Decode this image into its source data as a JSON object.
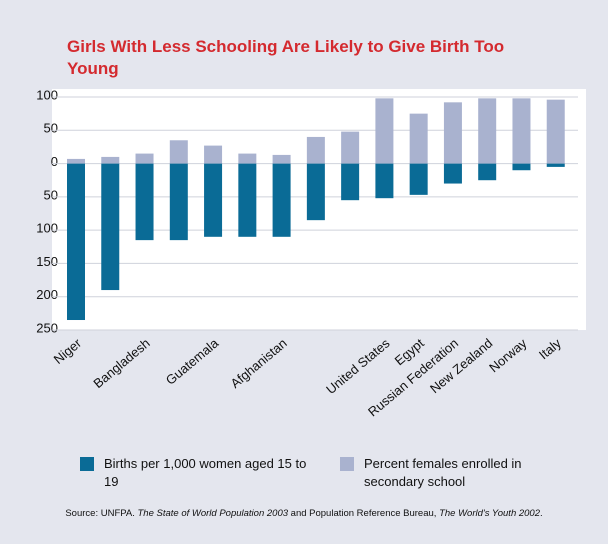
{
  "chart_data": {
    "type": "bar",
    "title": "Girls With Less Schooling Are Likely to Give Birth Too Young",
    "categories": [
      "Niger",
      null,
      "Bangladesh",
      null,
      "Guatemala",
      null,
      "Afghanistan",
      null,
      null,
      "United States",
      "Egypt",
      "Russian Federation",
      "New Zealand",
      "Norway",
      "Italy"
    ],
    "series": [
      {
        "name": "Births per 1,000 women aged 15 to 19",
        "color": "#0a6b96",
        "values": [
          -235,
          -190,
          -115,
          -115,
          -110,
          -110,
          -110,
          -85,
          -55,
          -52,
          -47,
          -30,
          -25,
          -10,
          -5
        ]
      },
      {
        "name": "Percent females enrolled in secondary school",
        "color": "#a9b2cf",
        "values": [
          7,
          10,
          15,
          35,
          27,
          15,
          13,
          40,
          48,
          98,
          75,
          92,
          98,
          98,
          96
        ]
      }
    ],
    "ylim": [
      -250,
      100
    ],
    "yticks": [
      100,
      50,
      0,
      {
        "value": -50,
        "label": "50"
      },
      {
        "value": -100,
        "label": "100"
      },
      {
        "value": -150,
        "label": "150"
      },
      {
        "value": -200,
        "label": "200"
      },
      {
        "value": -250,
        "label": "250"
      }
    ],
    "grid": true,
    "source_parts": [
      "Source: UNFPA. ",
      "The State of World Population 2003",
      " and Population Reference Bureau, ",
      "The World's Youth 2002",
      "."
    ]
  }
}
